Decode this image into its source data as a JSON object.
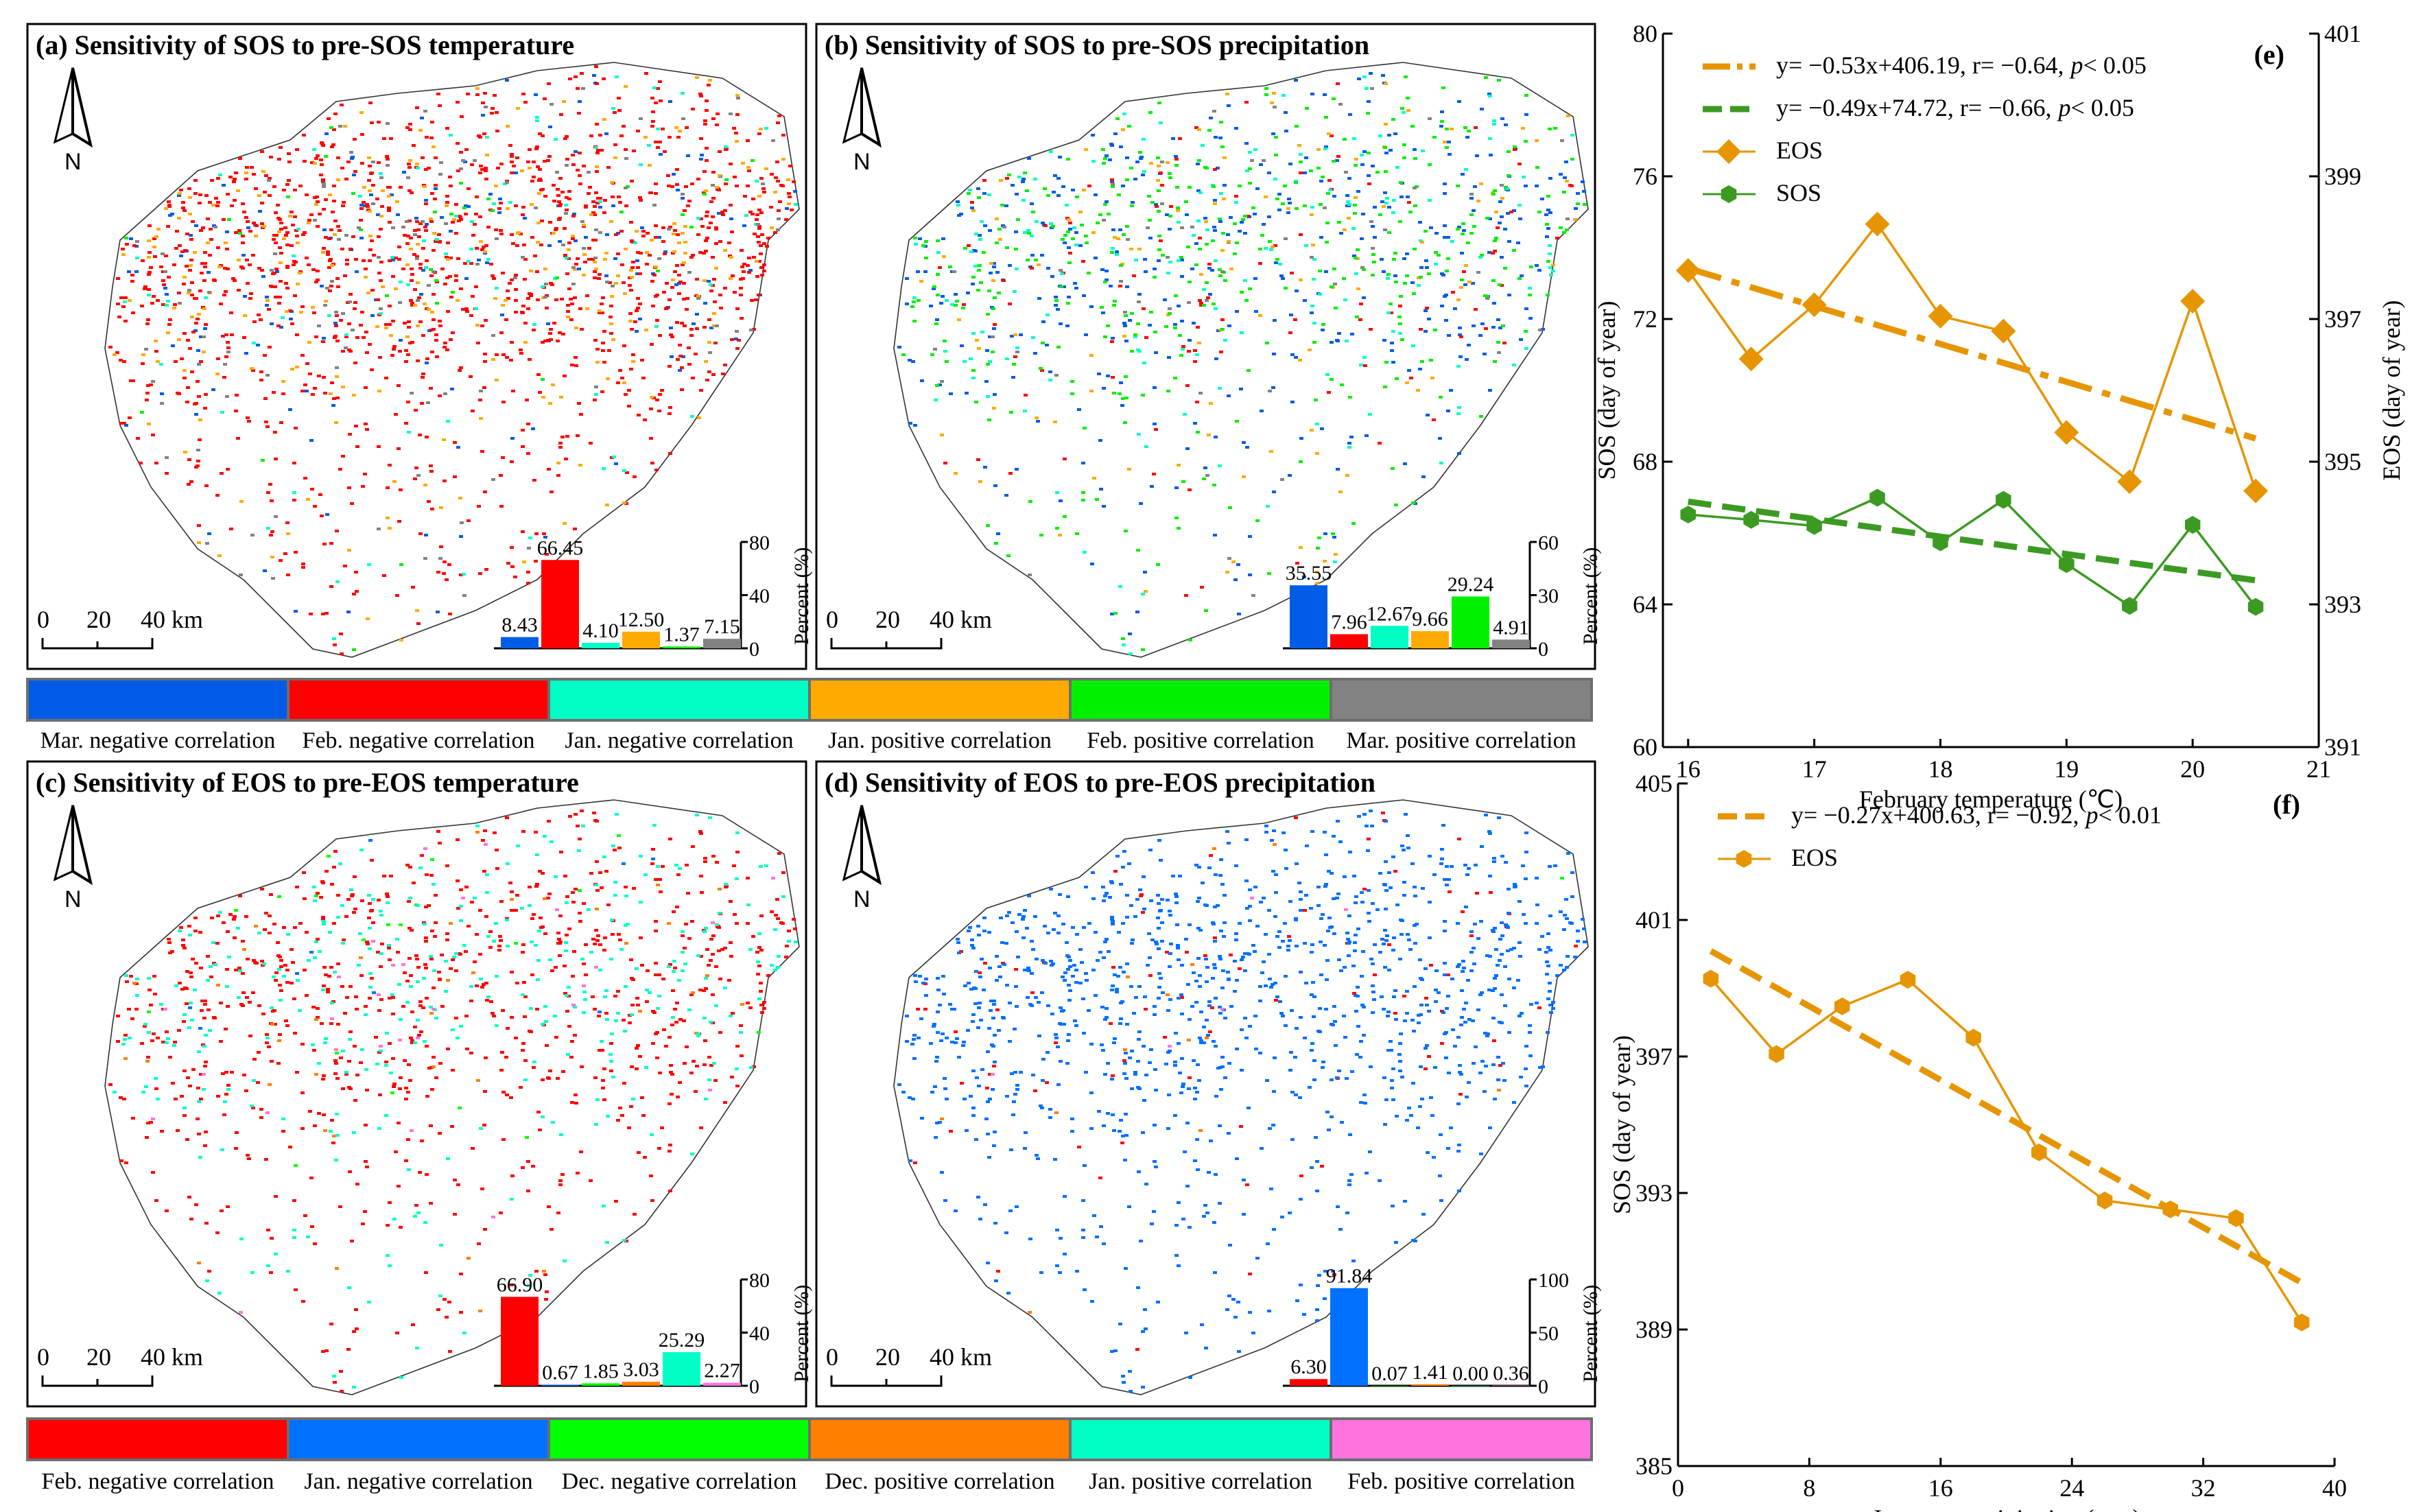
{
  "panels": [
    {
      "title": "(a) Sensitivity of SOS to pre-SOS temperature",
      "north": "N",
      "scale_labels": [
        "0",
        "20",
        "40 km"
      ],
      "legend": 0,
      "inset": {
        "ylabel": "Percent (%)",
        "yticks": [
          "0",
          "40",
          "80"
        ],
        "ymax": 80,
        "values": [
          "8.43",
          "66.45",
          "4.10",
          "12.50",
          "1.37",
          "7.15"
        ]
      }
    },
    {
      "title": "(b) Sensitivity of SOS to pre-SOS precipitation",
      "north": "N",
      "scale_labels": [
        "0",
        "20",
        "40 km"
      ],
      "legend": 0,
      "inset": {
        "ylabel": "Percent (%)",
        "yticks": [
          "0",
          "30",
          "60"
        ],
        "ymax": 60,
        "values": [
          "35.55",
          "7.96",
          "12.67",
          "9.66",
          "29.24",
          "4.91"
        ]
      }
    },
    {
      "title": "(c) Sensitivity of EOS to pre-EOS temperature",
      "north": "N",
      "scale_labels": [
        "0",
        "20",
        "40 km"
      ],
      "legend": 1,
      "inset": {
        "ylabel": "Percent (%)",
        "yticks": [
          "0",
          "40",
          "80"
        ],
        "ymax": 80,
        "values": [
          "66.90",
          "0.67",
          "1.85",
          "3.03",
          "25.29",
          "2.27"
        ]
      }
    },
    {
      "title": "(d) Sensitivity of EOS to pre-EOS precipitation",
      "north": "N",
      "scale_labels": [
        "0",
        "20",
        "40 km"
      ],
      "legend": 1,
      "inset": {
        "ylabel": "Percent (%)",
        "yticks": [
          "0",
          "50",
          "100"
        ],
        "ymax": 100,
        "values": [
          "6.30",
          "91.84",
          "0.07",
          "1.41",
          "0.00",
          "0.36"
        ]
      }
    }
  ],
  "legends": [
    {
      "items": [
        {
          "label": "Mar. negative correlation",
          "color": "#005ce6"
        },
        {
          "label": "Feb. negative correlation",
          "color": "#ff0000"
        },
        {
          "label": "Jan. negative correlation",
          "color": "#00ffc5"
        },
        {
          "label": "Jan. positive correlation",
          "color": "#ffaa00"
        },
        {
          "label": "Feb. positive correlation",
          "color": "#00f000"
        },
        {
          "label": "Mar. positive correlation",
          "color": "#828282"
        }
      ]
    },
    {
      "items": [
        {
          "label": "Feb. negative correlation",
          "color": "#ff0000"
        },
        {
          "label": "Jan. negative correlation",
          "color": "#0070ff"
        },
        {
          "label": "Dec. negative correlation",
          "color": "#00ff00"
        },
        {
          "label": "Dec. positive correlation",
          "color": "#ff7f00"
        },
        {
          "label": "Jan. positive correlation",
          "color": "#00ffc5"
        },
        {
          "label": "Feb. positive correlation",
          "color": "#ff73df"
        }
      ]
    }
  ],
  "chart_data": [
    {
      "type": "line",
      "panel_label": "(e)",
      "xlabel": "February temperature (℃)",
      "ylabel": "SOS (day of year)",
      "ylabel_right": "EOS (day of year)",
      "xlim": [
        15.8,
        21
      ],
      "ylim": [
        60,
        80
      ],
      "ylim_right": [
        391,
        401
      ],
      "xticks": [
        "16",
        "17",
        "18",
        "19",
        "20",
        "21"
      ],
      "yticks": [
        "60",
        "64",
        "68",
        "72",
        "76",
        "80"
      ],
      "yticks_right": [
        "391",
        "393",
        "395",
        "397",
        "399",
        "401"
      ],
      "x": [
        16,
        16.5,
        17,
        17.5,
        18,
        18.5,
        19,
        19.5,
        20,
        20.5
      ],
      "series": [
        {
          "name": "EOS",
          "axis": "right",
          "marker": "diamond",
          "color": "#e69500",
          "values": [
            397.68,
            396.44,
            397.2,
            398.33,
            397.04,
            396.83,
            395.41,
            394.72,
            397.25,
            394.59
          ]
        },
        {
          "name": "SOS",
          "axis": "left",
          "marker": "hexagon",
          "color": "#3c9a22",
          "values": [
            66.52,
            66.37,
            66.2,
            66.99,
            65.74,
            66.93,
            65.13,
            63.96,
            66.23,
            63.93
          ]
        }
      ],
      "fits": [
        {
          "eq": "y= −0.53x+406.19,  r= −0.64,",
          "p": "p",
          "sig": "< 0.05",
          "slope": -0.53,
          "intercept": 406.19,
          "axis": "right",
          "range": [
            16,
            20.5
          ],
          "style": "dashdot",
          "color": "#e69500"
        },
        {
          "eq": "y= −0.49x+74.72,  r= −0.66,",
          "p": "p",
          "sig": "< 0.05",
          "slope": -0.49,
          "intercept": 74.72,
          "axis": "left",
          "range": [
            16,
            20.5
          ],
          "style": "dash",
          "color": "#3c9a22"
        }
      ],
      "legend": "top-left"
    },
    {
      "type": "line",
      "panel_label": "(f)",
      "xlabel": "January precipitation (mm)",
      "ylabel": "SOS (day of year)",
      "xlim": [
        0,
        40
      ],
      "ylim": [
        385,
        405
      ],
      "xticks": [
        "0",
        "8",
        "16",
        "24",
        "32",
        "40"
      ],
      "yticks": [
        "385",
        "389",
        "393",
        "397",
        "401",
        "405"
      ],
      "x": [
        2,
        6,
        10,
        14,
        18,
        22,
        26,
        30,
        34,
        38
      ],
      "series": [
        {
          "name": "EOS",
          "axis": "left",
          "marker": "hexagon",
          "color": "#e69500",
          "values": [
            399.28,
            397.07,
            398.47,
            399.25,
            397.55,
            394.19,
            392.78,
            392.52,
            392.26,
            389.21
          ]
        }
      ],
      "fits": [
        {
          "eq": "y= −0.27x+400.63,  r= −0.92,",
          "p": "p",
          "sig": "< 0.01",
          "slope": -0.27,
          "intercept": 400.63,
          "axis": "left",
          "range": [
            2,
            38
          ],
          "style": "dash",
          "color": "#e69500"
        }
      ],
      "legend": "top-left"
    }
  ]
}
